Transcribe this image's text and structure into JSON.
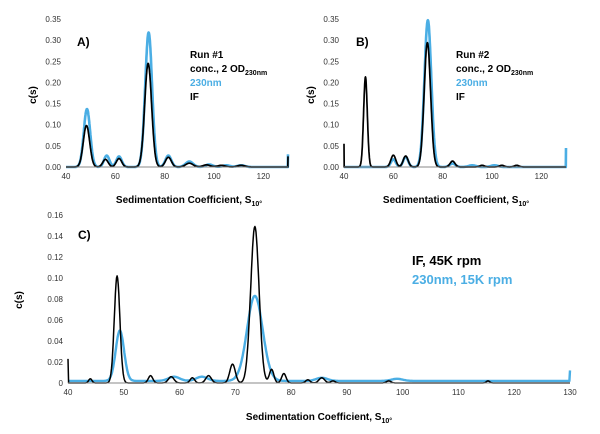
{
  "colors": {
    "if": "#000000",
    "uv230": "#4baee4",
    "axis": "#888888"
  },
  "chart_data": [
    {
      "type": "line",
      "panel_label": "A)",
      "xlabel": "Sedimentation Coefficient, S",
      "xlabel_sub": "10°",
      "ylabel": "c(s)",
      "xlim": [
        40,
        130
      ],
      "ylim": [
        0,
        0.35
      ],
      "xticks": [
        40,
        60,
        80,
        100,
        120
      ],
      "yticks": [
        "0.00",
        "0.05",
        "0.10",
        "0.15",
        "0.20",
        "0.25",
        "0.30",
        "0.35"
      ],
      "legend": [
        {
          "text": "Run #1",
          "color": "#000000"
        },
        {
          "text": "conc., 2 OD",
          "sub": "230nm",
          "color": "#000000"
        },
        {
          "text": "230nm",
          "color": "#4baee4"
        },
        {
          "text": "IF",
          "color": "#000000"
        }
      ],
      "series": [
        {
          "name": "230nm",
          "color": "#4baee4",
          "width": 2.6,
          "baseline": 0,
          "endpoints": [
            [
              40,
              0.0
            ],
            [
              130,
              0.03
            ]
          ],
          "peaks": [
            [
              48.5,
              0.137,
              1.3
            ],
            [
              56.5,
              0.027,
              1.1
            ],
            [
              61.5,
              0.025,
              1.1
            ],
            [
              73.5,
              0.318,
              1.4
            ],
            [
              81.5,
              0.027,
              1.2
            ],
            [
              90,
              0.013,
              1.5
            ],
            [
              98,
              0.006,
              1.5
            ],
            [
              105,
              0.004,
              1.5
            ],
            [
              111,
              0.004,
              1.5
            ]
          ]
        },
        {
          "name": "IF",
          "color": "#000000",
          "width": 1.7,
          "baseline": 0,
          "endpoints": [
            [
              40,
              0.0
            ],
            [
              130,
              0.025
            ]
          ],
          "peaks": [
            [
              48.3,
              0.098,
              1.3
            ],
            [
              56,
              0.018,
              1.1
            ],
            [
              61.5,
              0.02,
              1.1
            ],
            [
              73.3,
              0.245,
              1.4
            ],
            [
              81.5,
              0.023,
              1.2
            ],
            [
              90,
              0.009,
              1.5
            ],
            [
              97,
              0.005,
              1.5
            ],
            [
              103,
              0.004,
              1.5
            ],
            [
              111,
              0.004,
              1.5
            ]
          ]
        }
      ]
    },
    {
      "type": "line",
      "panel_label": "B)",
      "xlabel": "Sedimentation Coefficient, S",
      "xlabel_sub": "10°",
      "ylabel": "c(s)",
      "xlim": [
        40,
        130
      ],
      "ylim": [
        0,
        0.35
      ],
      "xticks": [
        40,
        60,
        80,
        100,
        120
      ],
      "yticks": [
        "0.00",
        "0.05",
        "0.10",
        "0.15",
        "0.20",
        "0.25",
        "0.30",
        "0.35"
      ],
      "legend": [
        {
          "text": "Run #2",
          "color": "#000000"
        },
        {
          "text": "conc., 2 OD",
          "sub": "230nm",
          "color": "#000000"
        },
        {
          "text": "230nm",
          "color": "#4baee4"
        },
        {
          "text": "IF",
          "color": "#000000"
        }
      ],
      "series": [
        {
          "name": "230nm",
          "color": "#4baee4",
          "width": 2.6,
          "baseline": 0,
          "endpoints": [
            [
              40,
              0.0
            ],
            [
              130,
              0.045
            ]
          ],
          "peaks": [
            [
              60,
              0.018,
              1.0
            ],
            [
              65,
              0.024,
              1.0
            ],
            [
              74,
              0.347,
              1.4
            ],
            [
              84,
              0.008,
              1.2
            ],
            [
              92,
              0.004,
              1.5
            ],
            [
              101,
              0.004,
              1.5
            ]
          ]
        },
        {
          "name": "IF",
          "color": "#000000",
          "width": 1.7,
          "baseline": 0,
          "endpoints": [
            [
              40,
              0.055
            ],
            [
              130,
              0.0
            ]
          ],
          "peaks": [
            [
              48.7,
              0.213,
              0.75
            ],
            [
              60,
              0.028,
              1.0
            ],
            [
              65,
              0.026,
              1.0
            ],
            [
              73.8,
              0.294,
              1.3
            ],
            [
              84,
              0.014,
              1.0
            ],
            [
              96,
              0.004,
              1.0
            ],
            [
              104,
              0.004,
              1.0
            ],
            [
              110,
              0.004,
              1.0
            ]
          ]
        }
      ]
    },
    {
      "type": "line",
      "panel_label": "C)",
      "xlabel": "Sedimentation Coefficient, S",
      "xlabel_sub": "10°",
      "ylabel": "c(s)",
      "xlim": [
        40,
        130
      ],
      "ylim": [
        0,
        0.16
      ],
      "xticks": [
        40,
        50,
        60,
        70,
        80,
        90,
        100,
        110,
        120,
        130
      ],
      "yticks": [
        "0",
        "0.02",
        "0.04",
        "0.06",
        "0.08",
        "0.10",
        "0.12",
        "0.14",
        "0.16"
      ],
      "legend": [
        {
          "text": "IF, 45K rpm",
          "color": "#000000"
        },
        {
          "text": "230nm, 15K rpm",
          "color": "#4baee4"
        }
      ],
      "series": [
        {
          "name": "230nm, 15K rpm",
          "color": "#4baee4",
          "width": 2.4,
          "baseline": 0.002,
          "endpoints": [
            [
              40,
              0.0
            ],
            [
              130,
              0.012
            ]
          ],
          "peaks": [
            [
              49.3,
              0.048,
              0.75
            ],
            [
              59,
              0.004,
              1.0
            ],
            [
              64,
              0.004,
              1.0
            ],
            [
              73.5,
              0.081,
              1.4
            ],
            [
              85.5,
              0.003,
              1.0
            ],
            [
              99,
              0.002,
              1.0
            ]
          ]
        },
        {
          "name": "IF, 45K rpm",
          "color": "#000000",
          "width": 1.5,
          "baseline": 0,
          "endpoints": [
            [
              40,
              0.023
            ],
            [
              130,
              0.0
            ]
          ],
          "peaks": [
            [
              44,
              0.004,
              0.3
            ],
            [
              48.8,
              0.102,
              0.5
            ],
            [
              54.8,
              0.007,
              0.4
            ],
            [
              58.5,
              0.006,
              0.5
            ],
            [
              62.3,
              0.005,
              0.4
            ],
            [
              65.2,
              0.007,
              0.5
            ],
            [
              69.5,
              0.018,
              0.5
            ],
            [
              73.5,
              0.149,
              0.75
            ],
            [
              76.5,
              0.013,
              0.4
            ],
            [
              78.7,
              0.009,
              0.4
            ],
            [
              83,
              0.003,
              0.4
            ],
            [
              85.5,
              0.005,
              0.5
            ],
            [
              87.5,
              0.002,
              0.4
            ],
            [
              97.5,
              0.002,
              0.4
            ],
            [
              115.3,
              0.002,
              0.3
            ]
          ]
        }
      ]
    }
  ]
}
